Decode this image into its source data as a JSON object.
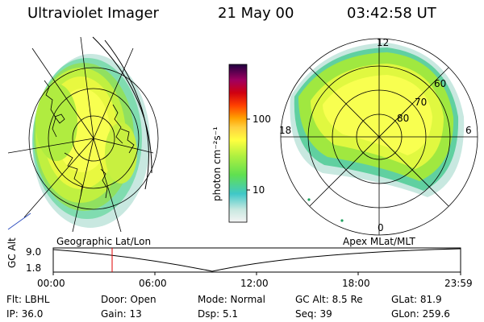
{
  "header": {
    "instrument": "Ultraviolet Imager",
    "date": "21 May 00",
    "time": "03:42:58 UT"
  },
  "colors": {
    "colorbar": [
      "#e8e8e8",
      "#c8e8e0",
      "#40c8c8",
      "#60e050",
      "#b0f040",
      "#ffff40",
      "#ffd040",
      "#ffa000",
      "#ff4000",
      "#e00000",
      "#b00040",
      "#600060",
      "#200040"
    ]
  },
  "left_map": {
    "label": "Geographic Lat/Lon"
  },
  "right_map": {
    "label": "Apex MLat/MLT",
    "mlt_labels": [
      "12",
      "18",
      "6",
      "0"
    ],
    "lat_labels": [
      "60",
      "70",
      "80"
    ]
  },
  "colorbar": {
    "unit_label": "photon cm⁻²s⁻¹",
    "tick_labels": [
      "100",
      "10"
    ]
  },
  "altitude_plot": {
    "axis_label": "GC Alt",
    "y_labels": [
      "9.0",
      "1.8"
    ],
    "x_labels": [
      "00:00",
      "06:00",
      "12:00",
      "18:00",
      "23:59"
    ],
    "marker_time": "03:42"
  },
  "footer": {
    "flt": "Flt: LBHL",
    "door": "Door: Open",
    "mode": "Mode: Normal",
    "gcalt": "GC Alt: 8.5 Re",
    "glat": "GLat:  81.9",
    "ip": "IP: 36.0",
    "gain": "Gain: 13",
    "dsp": "Dsp:    5.1",
    "seq": "Seq: 39",
    "glon": "GLon: 259.6"
  }
}
